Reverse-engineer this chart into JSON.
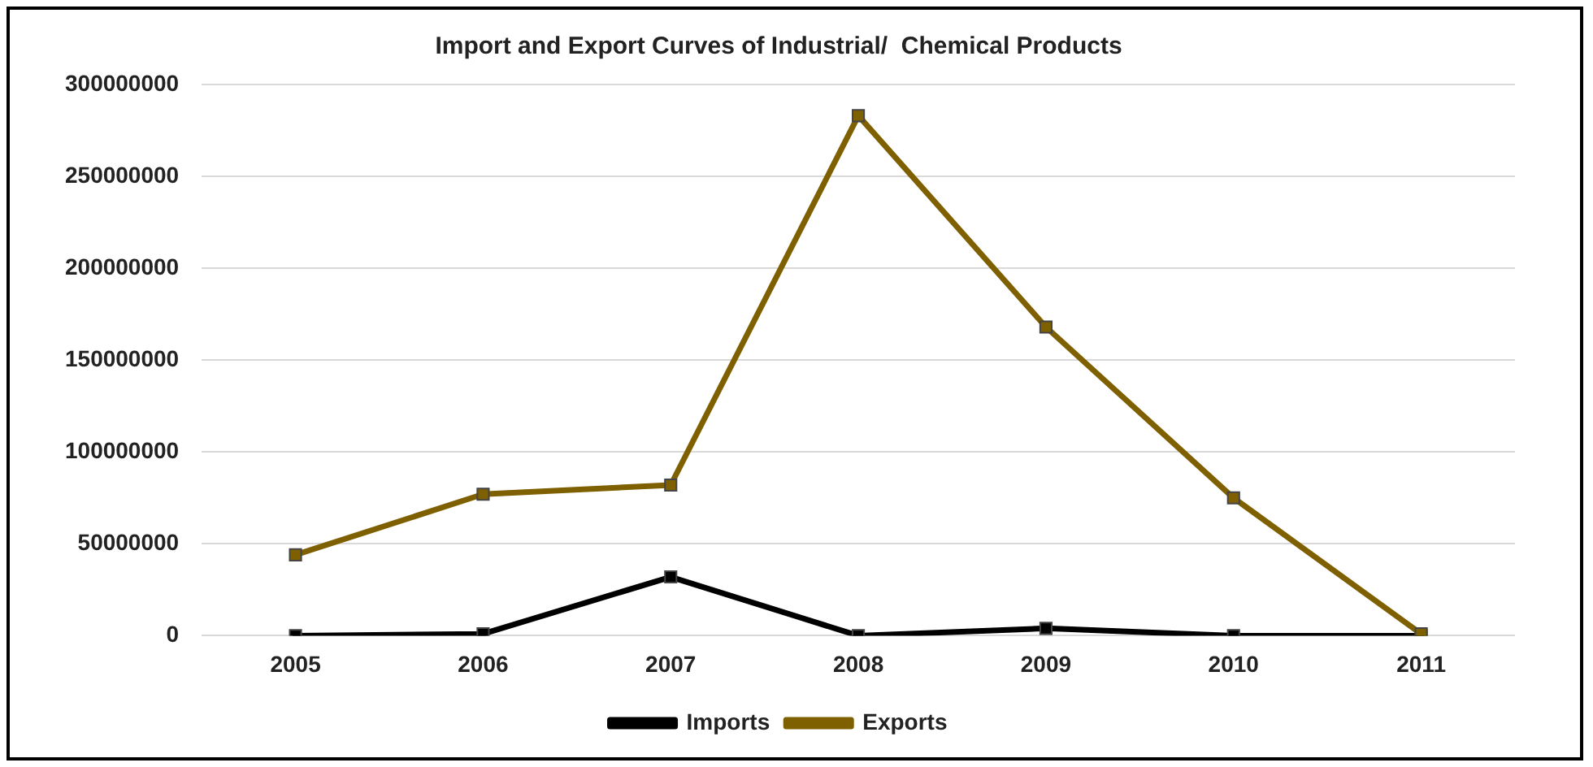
{
  "chart_data": {
    "type": "line",
    "title": "Import and Export Curves of Industrial/  Chemical Products",
    "categories": [
      "2005",
      "2006",
      "2007",
      "2008",
      "2009",
      "2010",
      "2011"
    ],
    "series": [
      {
        "name": "Imports",
        "color": "#000000",
        "values": [
          0,
          1000000,
          32000000,
          0,
          4000000,
          0,
          0
        ]
      },
      {
        "name": "Exports",
        "color": "#7f6000",
        "values": [
          44000000,
          77000000,
          82000000,
          283000000,
          168000000,
          75000000,
          1000000
        ]
      }
    ],
    "ylim": [
      0,
      300000000
    ],
    "yticks": [
      0,
      50000000,
      100000000,
      150000000,
      200000000,
      250000000,
      300000000
    ],
    "grid": "y",
    "legend": "bottom",
    "marker": "square",
    "line_style": "solid"
  }
}
